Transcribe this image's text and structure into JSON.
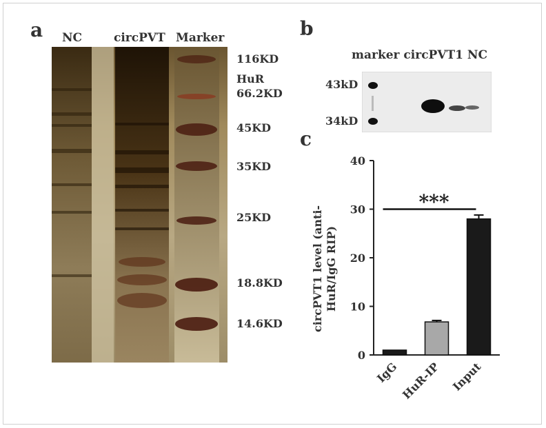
{
  "panel_a": {
    "label": "a",
    "lanes": [
      "NC",
      "circPVT",
      "Marker"
    ],
    "marker_labels": [
      "116KD",
      "HuR",
      "66.2KD",
      "45KD",
      "35KD",
      "25KD",
      "18.8KD",
      "14.6KD"
    ]
  },
  "panel_b": {
    "label": "b",
    "lanes_text": "marker circPVT1 NC",
    "mw_labels": [
      "43kD",
      "34kD"
    ]
  },
  "panel_c": {
    "label": "c",
    "chart_data": {
      "type": "bar",
      "categories": [
        "IgG",
        "HuR-IP",
        "Input"
      ],
      "values": [
        1,
        6.8,
        28
      ],
      "errors": [
        0,
        0.3,
        0.8
      ],
      "bar_colors": [
        "#1a1a1a",
        "#a8a8a8",
        "#1a1a1a"
      ],
      "ylabel_line1": "circPVT1 level (anti-",
      "ylabel_line2": "HuR/IgG RIP)",
      "ylim": [
        0,
        40
      ],
      "yticks": [
        0,
        10,
        20,
        30,
        40
      ],
      "significance": "***"
    }
  }
}
